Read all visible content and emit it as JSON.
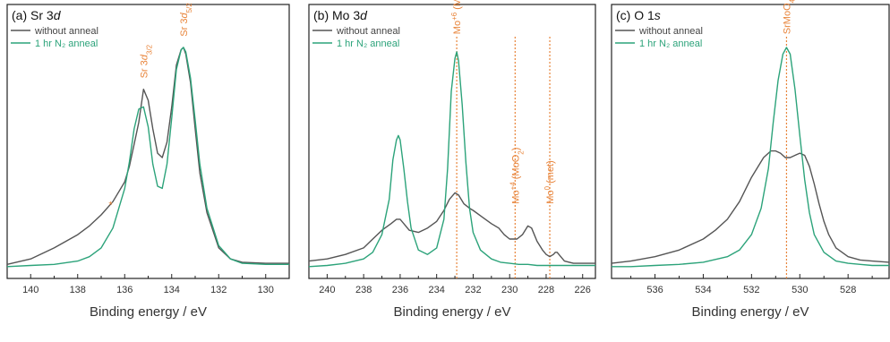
{
  "colors": {
    "series_0": "#555555",
    "series_1": "#2ca37a",
    "annotation": "#e8843a",
    "axis": "#222222"
  },
  "chart_data": [
    {
      "type": "line",
      "title_prefix": "(a) Sr 3",
      "title_orbital": "d",
      "xlabel": "Binding energy / eV",
      "ylabel": "",
      "xlim": [
        141,
        129
      ],
      "xticks": [
        140,
        138,
        136,
        134,
        132,
        130
      ],
      "ylim": [
        0,
        1
      ],
      "grid": false,
      "legend": "top-left",
      "series": [
        {
          "name": "without anneal",
          "x": [
            141,
            140,
            139,
            138,
            137.5,
            137,
            136.5,
            136,
            135.8,
            135.6,
            135.4,
            135.2,
            135.0,
            134.8,
            134.6,
            134.4,
            134.2,
            134.0,
            133.8,
            133.6,
            133.5,
            133.4,
            133.2,
            133.0,
            132.8,
            132.5,
            132.0,
            131.5,
            131,
            130,
            129
          ],
          "y": [
            0.015,
            0.04,
            0.09,
            0.15,
            0.19,
            0.24,
            0.3,
            0.39,
            0.46,
            0.56,
            0.66,
            0.81,
            0.76,
            0.63,
            0.52,
            0.5,
            0.57,
            0.73,
            0.92,
            0.99,
            1.0,
            0.97,
            0.84,
            0.63,
            0.43,
            0.25,
            0.09,
            0.04,
            0.025,
            0.02,
            0.02
          ]
        },
        {
          "name": "1 hr N₂ anneal",
          "x": [
            141,
            140,
            139,
            138,
            137.5,
            137,
            136.5,
            136,
            135.8,
            135.6,
            135.4,
            135.2,
            135.0,
            134.8,
            134.6,
            134.4,
            134.2,
            134.0,
            133.8,
            133.6,
            133.5,
            133.4,
            133.2,
            133.0,
            132.8,
            132.5,
            132.0,
            131.5,
            131,
            130,
            129
          ],
          "y": [
            0.005,
            0.01,
            0.015,
            0.03,
            0.05,
            0.09,
            0.18,
            0.36,
            0.48,
            0.63,
            0.72,
            0.73,
            0.64,
            0.47,
            0.37,
            0.36,
            0.47,
            0.68,
            0.9,
            0.99,
            1.0,
            0.98,
            0.86,
            0.67,
            0.47,
            0.27,
            0.1,
            0.04,
            0.02,
            0.015,
            0.015
          ]
        }
      ],
      "annotations": [
        {
          "text_main": "Sr 3",
          "text_orbital": "d",
          "text_sub": "3/2",
          "x": 135.2,
          "y": 0.86
        },
        {
          "text_main": "Sr 3",
          "text_orbital": "d",
          "text_sub": "5/2",
          "x": 133.5,
          "y": 1.05
        },
        {
          "text_main": "*",
          "x": 136.6,
          "y": 0.27
        }
      ]
    },
    {
      "type": "line",
      "title_prefix": "(b) Mo 3",
      "title_orbital": "d",
      "xlabel": "Binding energy / eV",
      "ylabel": "",
      "xlim": [
        241,
        225.3
      ],
      "xticks": [
        240,
        238,
        236,
        234,
        232,
        230,
        228,
        226
      ],
      "ylim": [
        0,
        1
      ],
      "grid": false,
      "legend": "top-left",
      "series": [
        {
          "name": "without anneal",
          "x": [
            241,
            240,
            239,
            238,
            237.5,
            237,
            236.5,
            236.2,
            236.0,
            235.8,
            235.5,
            235,
            234.5,
            234,
            233.6,
            233.3,
            233.0,
            232.8,
            232.5,
            232.2,
            232.0,
            231.5,
            231.0,
            230.6,
            230.3,
            230.0,
            229.6,
            229.3,
            229.0,
            228.8,
            228.5,
            228.2,
            228.0,
            227.8,
            227.6,
            227.5,
            227.4,
            227.2,
            227.0,
            226.5,
            226,
            225.3
          ],
          "y": [
            0.03,
            0.04,
            0.06,
            0.09,
            0.13,
            0.17,
            0.2,
            0.22,
            0.22,
            0.2,
            0.17,
            0.16,
            0.18,
            0.21,
            0.26,
            0.31,
            0.34,
            0.33,
            0.29,
            0.27,
            0.26,
            0.23,
            0.2,
            0.18,
            0.15,
            0.13,
            0.13,
            0.15,
            0.19,
            0.18,
            0.12,
            0.08,
            0.06,
            0.05,
            0.06,
            0.07,
            0.07,
            0.05,
            0.03,
            0.02,
            0.02,
            0.02
          ]
        },
        {
          "name": "1 hr N₂ anneal",
          "x": [
            241,
            240,
            239,
            238,
            237.5,
            237,
            236.6,
            236.4,
            236.2,
            236.1,
            236.0,
            235.8,
            235.6,
            235.4,
            235.0,
            234.5,
            234.0,
            233.6,
            233.4,
            233.2,
            233.0,
            232.9,
            232.8,
            232.6,
            232.4,
            232.2,
            232.0,
            231.6,
            231.0,
            230.5,
            230.0,
            229.5,
            229.0,
            228.5,
            228.0,
            227.5,
            227.0,
            226.5,
            226,
            225.3
          ],
          "y": [
            0.005,
            0.01,
            0.02,
            0.04,
            0.07,
            0.15,
            0.31,
            0.49,
            0.58,
            0.6,
            0.58,
            0.45,
            0.3,
            0.18,
            0.08,
            0.06,
            0.09,
            0.22,
            0.45,
            0.8,
            0.95,
            0.98,
            0.94,
            0.74,
            0.48,
            0.27,
            0.16,
            0.08,
            0.04,
            0.025,
            0.02,
            0.015,
            0.015,
            0.01,
            0.01,
            0.01,
            0.01,
            0.01,
            0.01,
            0.01
          ]
        }
      ],
      "annotations": [
        {
          "text_main": "Mo",
          "text_sup": "+6",
          "text_rest": " (MoO",
          "text_sub": "3",
          "text_close": ")",
          "x": 232.9,
          "y": 1.06
        },
        {
          "text_main": "Mo",
          "text_sup": "+4",
          "text_rest": " (MoO",
          "text_sub": "2",
          "text_close": ")",
          "x": 229.7,
          "y": 0.29
        },
        {
          "text_main": "Mo",
          "text_sup": "0",
          "text_rest": " (met)",
          "x": 227.8,
          "y": 0.29
        }
      ],
      "ref_lines": [
        232.9,
        229.7,
        227.8
      ]
    },
    {
      "type": "line",
      "title_prefix": "(c) O 1",
      "title_orbital": "s",
      "xlabel": "Binding energy / eV",
      "ylabel": "",
      "xlim": [
        537.8,
        526.3
      ],
      "xticks": [
        536,
        534,
        532,
        530,
        528
      ],
      "ylim": [
        0,
        1
      ],
      "grid": false,
      "legend": "top-left",
      "series": [
        {
          "name": "without anneal",
          "x": [
            537.8,
            537,
            536,
            535,
            534,
            533.5,
            533,
            532.5,
            532,
            531.5,
            531.2,
            531.0,
            530.8,
            530.6,
            530.4,
            530.2,
            530.0,
            529.8,
            529.6,
            529.4,
            529.2,
            529.0,
            528.8,
            528.5,
            528.0,
            527.5,
            527,
            526.3
          ],
          "y": [
            0.02,
            0.03,
            0.05,
            0.08,
            0.13,
            0.17,
            0.22,
            0.3,
            0.41,
            0.5,
            0.53,
            0.53,
            0.52,
            0.5,
            0.5,
            0.51,
            0.52,
            0.51,
            0.46,
            0.38,
            0.29,
            0.21,
            0.15,
            0.09,
            0.05,
            0.035,
            0.03,
            0.025
          ]
        },
        {
          "name": "1 hr N₂ anneal",
          "x": [
            537.8,
            537,
            536,
            535,
            534,
            533,
            532.5,
            532,
            531.6,
            531.3,
            531.1,
            530.9,
            530.7,
            530.55,
            530.4,
            530.2,
            530.0,
            529.8,
            529.6,
            529.4,
            529.0,
            528.5,
            528.0,
            527.5,
            527,
            526.3
          ],
          "y": [
            0.005,
            0.005,
            0.01,
            0.015,
            0.025,
            0.05,
            0.08,
            0.15,
            0.27,
            0.45,
            0.66,
            0.85,
            0.97,
            1.0,
            0.97,
            0.81,
            0.6,
            0.4,
            0.25,
            0.15,
            0.07,
            0.03,
            0.02,
            0.015,
            0.01,
            0.01
          ]
        }
      ],
      "annotations": [
        {
          "text_main": "SrMoO",
          "text_sub": "4",
          "x": 530.55,
          "y": 1.06
        }
      ],
      "ref_lines": [
        530.55
      ]
    }
  ]
}
